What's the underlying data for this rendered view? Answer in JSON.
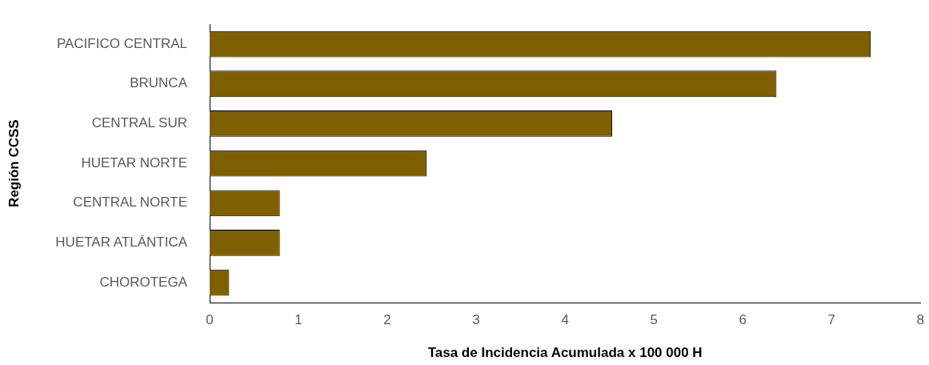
{
  "chart_data": {
    "type": "bar",
    "orientation": "horizontal",
    "xlabel": "Tasa de Incidencia Acumulada x 100 000 H",
    "ylabel": "Región CCSS",
    "categories": [
      "PACIFICO CENTRAL",
      "BRUNCA",
      "CENTRAL SUR",
      "HUETAR NORTE",
      "CENTRAL NORTE",
      "HUETAR ATLÁNTICA",
      "CHOROTEGA"
    ],
    "values": [
      7.44,
      6.38,
      4.53,
      2.44,
      0.79,
      0.79,
      0.22
    ],
    "color": "#7f6000",
    "xlim": [
      0,
      8
    ],
    "xticks": [
      0,
      1,
      2,
      3,
      4,
      5,
      6,
      7,
      8
    ],
    "grid": false,
    "legend": false
  }
}
